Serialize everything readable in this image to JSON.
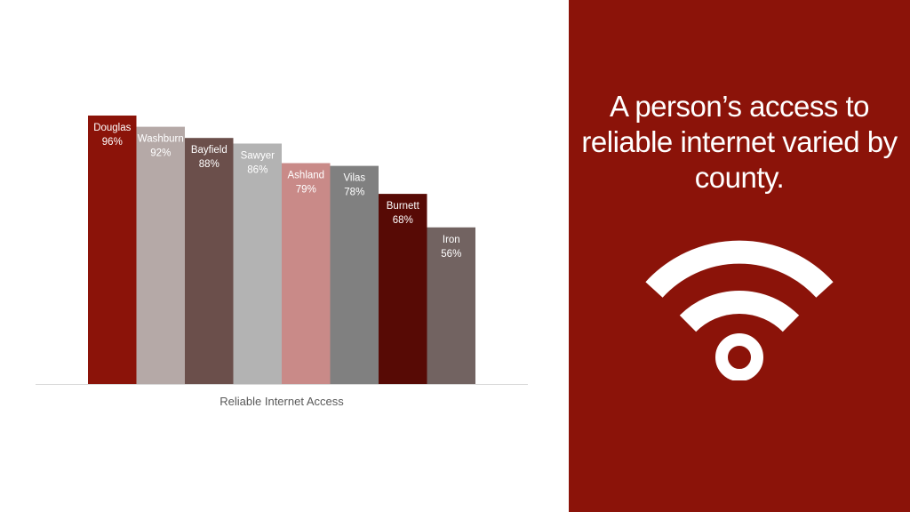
{
  "slide": {
    "headline": "A person’s access to reliable internet varied by county.",
    "icon": "wifi-icon",
    "panel_color": "#8b1309"
  },
  "chart_data": {
    "type": "bar",
    "categories": [
      "Douglas",
      "Washburn",
      "Bayfield",
      "Sawyer",
      "Ashland",
      "Vilas",
      "Burnett",
      "Iron"
    ],
    "values": [
      96,
      92,
      88,
      86,
      79,
      78,
      68,
      56
    ],
    "value_labels": [
      "96%",
      "92%",
      "88%",
      "86%",
      "79%",
      "78%",
      "68%",
      "56%"
    ],
    "colors": [
      "#8b1309",
      "#b5a9a7",
      "#6b4f4b",
      "#b3b3b3",
      "#c98a88",
      "#808080",
      "#570a05",
      "#726361"
    ],
    "label_colors": [
      "#ffffff",
      "#ffffff",
      "#ffffff",
      "#ffffff",
      "#ffffff",
      "#ffffff",
      "#ffffff",
      "#ffffff"
    ],
    "xlabel": "Reliable Internet Access",
    "ylim": [
      0,
      100
    ],
    "grid": false,
    "legend": "none"
  }
}
